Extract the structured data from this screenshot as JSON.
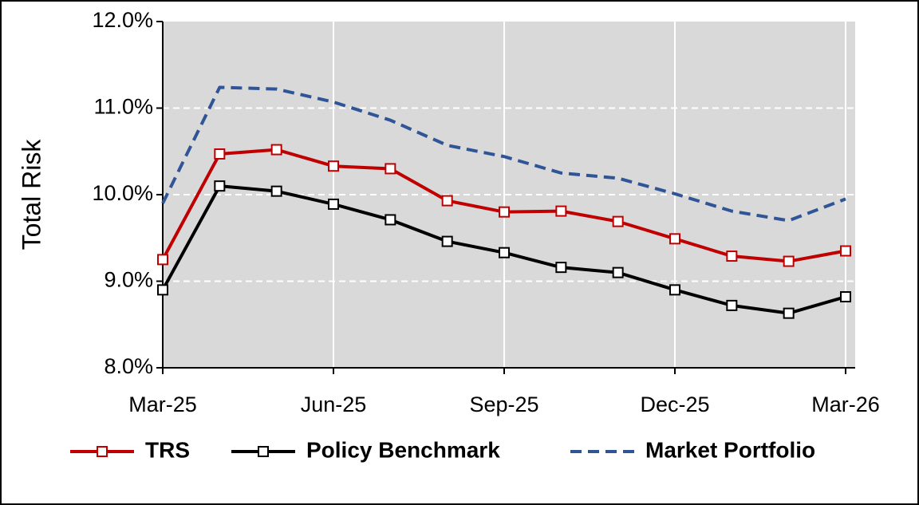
{
  "chart_data": {
    "type": "line",
    "y_label": "Total Risk",
    "categories": [
      "Mar-25",
      null,
      null,
      "Jun-25",
      null,
      null,
      "Sep-25",
      null,
      null,
      "Dec-25",
      null,
      null,
      "Mar-26"
    ],
    "series": [
      {
        "name": "TRS",
        "color": "#c00000",
        "marker": "square",
        "dash": false,
        "values": [
          9.25,
          10.47,
          10.52,
          10.33,
          10.3,
          9.93,
          9.8,
          9.81,
          9.69,
          9.49,
          9.29,
          9.23,
          9.35
        ]
      },
      {
        "name": "Policy Benchmark",
        "color": "#000000",
        "marker": "square",
        "dash": false,
        "values": [
          8.9,
          10.1,
          10.04,
          9.89,
          9.71,
          9.46,
          9.33,
          9.16,
          9.1,
          8.9,
          8.72,
          8.63,
          8.82
        ]
      },
      {
        "name": "Market Portfolio",
        "color": "#2f5597",
        "marker": "none",
        "dash": true,
        "values": [
          9.9,
          11.24,
          11.22,
          11.07,
          10.86,
          10.57,
          10.44,
          10.25,
          10.19,
          10.01,
          9.81,
          9.7,
          9.95
        ]
      }
    ],
    "ylim": [
      8,
      12
    ],
    "yticks": [
      {
        "value": 8,
        "label": "8.0%"
      },
      {
        "value": 9,
        "label": "9.0%"
      },
      {
        "value": 10,
        "label": "10.0%"
      },
      {
        "value": 11,
        "label": "11.0%"
      },
      {
        "value": 12,
        "label": "12.0%"
      }
    ],
    "grid": true,
    "legend": "bottom"
  }
}
